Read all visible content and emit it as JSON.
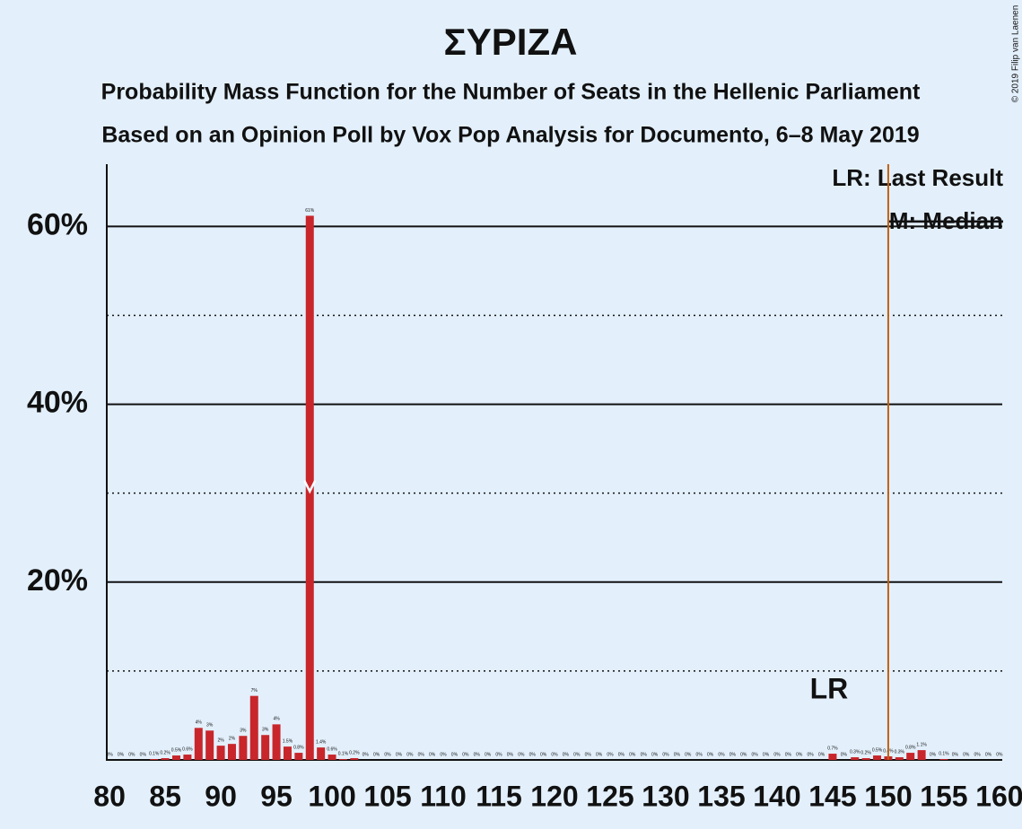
{
  "chart_data": {
    "type": "bar",
    "title": "ΣΥΡΙΖΑ",
    "subtitle": "Probability Mass Function for the Number of Seats in the Hellenic Parliament",
    "subtitle2": "Based on an Opinion Poll by Vox Pop Analysis for Documento, 6–8 May 2019",
    "copyright": "© 2019 Filip van Laenen",
    "x": [
      80,
      81,
      82,
      83,
      84,
      85,
      86,
      87,
      88,
      89,
      90,
      91,
      92,
      93,
      94,
      95,
      96,
      97,
      98,
      99,
      100,
      101,
      102,
      103,
      104,
      105,
      106,
      107,
      108,
      109,
      110,
      111,
      112,
      113,
      114,
      115,
      116,
      117,
      118,
      119,
      120,
      121,
      122,
      123,
      124,
      125,
      126,
      127,
      128,
      129,
      130,
      131,
      132,
      133,
      134,
      135,
      136,
      137,
      138,
      139,
      140,
      141,
      142,
      143,
      144,
      145,
      146,
      147,
      148,
      149,
      150,
      151,
      152,
      153,
      154,
      155,
      156,
      157,
      158,
      159,
      160
    ],
    "values": [
      0,
      0,
      0,
      0,
      0.1,
      0.2,
      0.5,
      0.6,
      3.6,
      3.3,
      1.6,
      1.8,
      2.7,
      7.2,
      2.8,
      4.0,
      1.5,
      0.8,
      61.2,
      1.4,
      0.6,
      0.1,
      0.2,
      0,
      0,
      0,
      0,
      0,
      0,
      0,
      0,
      0,
      0,
      0,
      0,
      0,
      0,
      0,
      0,
      0,
      0,
      0,
      0,
      0,
      0,
      0,
      0,
      0,
      0,
      0,
      0,
      0,
      0,
      0,
      0,
      0,
      0,
      0,
      0,
      0,
      0,
      0,
      0,
      0,
      0,
      0.7,
      0,
      0.3,
      0.2,
      0.5,
      0.4,
      0.3,
      0.8,
      1.1,
      0,
      0.1,
      0,
      0,
      0,
      0,
      0
    ],
    "value_labels": [
      "0%",
      "0%",
      "0%",
      "0%",
      "0.1%",
      "0.2%",
      "0.5%",
      "0.6%",
      "4%",
      "3%",
      "2%",
      "2%",
      "3%",
      "7%",
      "3%",
      "4%",
      "1.5%",
      "0.8%",
      "61%",
      "1.4%",
      "0.6%",
      "0.1%",
      "0.2%",
      "0%",
      "0%",
      "0%",
      "0%",
      "0%",
      "0%",
      "0%",
      "0%",
      "0%",
      "0%",
      "0%",
      "0%",
      "0%",
      "0%",
      "0%",
      "0%",
      "0%",
      "0%",
      "0%",
      "0%",
      "0%",
      "0%",
      "0%",
      "0%",
      "0%",
      "0%",
      "0%",
      "0%",
      "0%",
      "0%",
      "0%",
      "0%",
      "0%",
      "0%",
      "0%",
      "0%",
      "0%",
      "0%",
      "0%",
      "0%",
      "0%",
      "0%",
      "0.7%",
      "0%",
      "0.3%",
      "0.2%",
      "0.5%",
      "0.4%",
      "0.3%",
      "0.8%",
      "1.1%",
      "0%",
      "0.1%",
      "0%",
      "0%",
      "0%",
      "0%",
      "0%"
    ],
    "color": "#c8262b",
    "xlim": [
      79.75,
      160.25
    ],
    "xticks": [
      80,
      85,
      90,
      95,
      100,
      105,
      110,
      115,
      120,
      125,
      130,
      135,
      140,
      145,
      150,
      155,
      160
    ],
    "ylim": [
      0,
      67
    ],
    "yticks": [
      {
        "value": 20,
        "label": "20%"
      },
      {
        "value": 40,
        "label": "40%"
      },
      {
        "value": 60,
        "label": "60%"
      }
    ],
    "minor_gridlines": [
      10,
      30,
      50
    ],
    "grid": true,
    "last_result": 150,
    "last_result_color": "#c06010",
    "last_result_label": "LR",
    "median": 98,
    "legend": [
      "LR: Last Result",
      "M: Median"
    ]
  }
}
